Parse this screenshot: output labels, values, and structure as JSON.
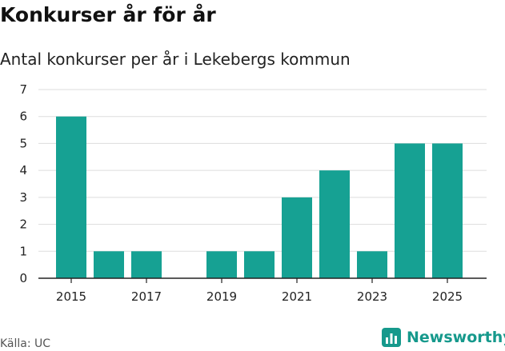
{
  "header": {
    "title": "Konkurser år för år",
    "subtitle": "Antal konkurser per år i Lekebergs kommun"
  },
  "footer": {
    "source": "Källa: UC",
    "brand": "Newsworthy"
  },
  "colors": {
    "bar": "#16a193",
    "grid": "#dddddd",
    "axis": "#222222",
    "brand": "#16998c"
  },
  "chart_data": {
    "type": "bar",
    "title": "Konkurser år för år",
    "subtitle": "Antal konkurser per år i Lekebergs kommun",
    "xlabel": "",
    "ylabel": "",
    "categories": [
      "2015",
      "2016",
      "2017",
      "2018",
      "2019",
      "2020",
      "2021",
      "2022",
      "2023",
      "2024",
      "2025"
    ],
    "values": [
      6,
      1,
      1,
      0,
      1,
      1,
      3,
      4,
      1,
      5,
      5
    ],
    "x_tick_labels": [
      "2015",
      "2017",
      "2019",
      "2021",
      "2023",
      "2025"
    ],
    "y_ticks": [
      0,
      1,
      2,
      3,
      4,
      5,
      6,
      7
    ],
    "ylim": [
      0,
      7
    ],
    "grid": true,
    "legend": "none"
  }
}
